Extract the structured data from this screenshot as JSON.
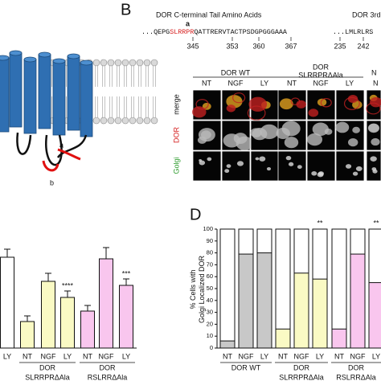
{
  "diagram": {
    "labels": [
      "a",
      "b"
    ]
  },
  "panel_b": {
    "label": "B",
    "title": "DOR C-terminal Tail Amino Acids",
    "title2": "DOR 3rd",
    "site_label": "a",
    "sequence": {
      "before": "...QEPG",
      "motif": "SLRRPR",
      "after": "QATTRERVTACTPSDGPGGGAAA"
    },
    "positions": [
      345,
      353,
      360,
      367
    ],
    "sequence2": "...LMLRLRS",
    "positions2": [
      235,
      242
    ],
    "groups": [
      {
        "lines": [
          "DOR WT"
        ]
      },
      {
        "lines": [
          "DOR",
          "SLRRPRΔAla"
        ]
      }
    ],
    "partial_group": "N",
    "conditions": [
      "NT",
      "NGF",
      "LY"
    ],
    "rows": [
      "merge",
      "DOR",
      "Golgi"
    ]
  },
  "panel_c": {
    "categories": [
      "LY",
      "NT",
      "NGF",
      "LY",
      "NT",
      "NGF",
      "LY"
    ],
    "values": [
      113,
      33,
      83,
      63,
      46,
      111,
      78
    ],
    "errors": [
      10,
      7,
      10,
      8,
      7,
      14,
      8
    ],
    "colors": [
      "#ffffff",
      "#fafac4",
      "#fafac4",
      "#fafac4",
      "#f9c6ee",
      "#f9c6ee",
      "#f9c6ee"
    ],
    "stars": [
      null,
      null,
      null,
      "****",
      null,
      null,
      "***"
    ],
    "groups": [
      {
        "lines": [
          "DOR",
          "SLRRPRΔAla"
        ]
      },
      {
        "lines": [
          "DOR",
          "RSLRRΔAla"
        ]
      }
    ]
  },
  "panel_d": {
    "label": "D",
    "ylabel": [
      "% Cells with",
      "Golgi Localized DOR"
    ],
    "ylim": [
      0,
      100
    ],
    "yticks": [
      0,
      10,
      20,
      30,
      40,
      50,
      60,
      70,
      80,
      90,
      100
    ],
    "categories": [
      "NT",
      "NGF",
      "LY",
      "NT",
      "NGF",
      "LY",
      "NT",
      "NGF",
      "LY"
    ],
    "values": [
      6,
      79,
      80,
      16,
      63,
      58,
      16,
      79,
      55
    ],
    "colors": [
      "#c8c8c8",
      "#c8c8c8",
      "#c8c8c8",
      "#fafac4",
      "#fafac4",
      "#fafac4",
      "#f9c6ee",
      "#f9c6ee",
      "#f9c6ee"
    ],
    "stars": [
      null,
      null,
      null,
      null,
      null,
      "**",
      null,
      null,
      "**"
    ],
    "groups": [
      {
        "lines": [
          "DOR WT"
        ]
      },
      {
        "lines": [
          "DOR",
          "SLRRPRΔAla"
        ]
      },
      {
        "lines": [
          "DOR",
          "RSLRRΔAla"
        ]
      }
    ]
  }
}
